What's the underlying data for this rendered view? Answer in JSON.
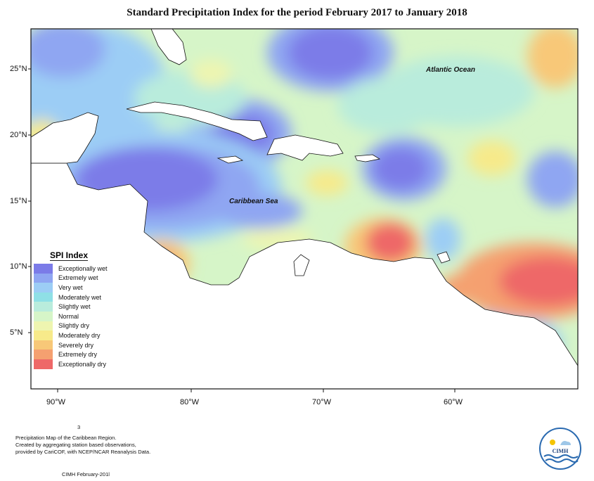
{
  "title": "Standard Precipitation Index for the period February 2017 to January 2018",
  "latitude_labels": [
    "25°N",
    "20°N",
    "15°N",
    "10°N",
    "5°N"
  ],
  "longitude_labels": [
    "90°W",
    "80°W",
    "70°W",
    "60°W"
  ],
  "ocean_labels": {
    "atlantic": "Atlantic Ocean",
    "caribbean": "Caribbean Sea"
  },
  "legend": {
    "title": "SPI Index",
    "items": [
      {
        "label": "Exceptionally wet",
        "color": "#7b7be8"
      },
      {
        "label": "Extremely wet",
        "color": "#8fa6f2"
      },
      {
        "label": "Very wet",
        "color": "#9ccdf5"
      },
      {
        "label": "Moderately wet",
        "color": "#8fe0e6"
      },
      {
        "label": "Slightly wet",
        "color": "#b9ecdc"
      },
      {
        "label": "Normal",
        "color": "#d6f5c8"
      },
      {
        "label": "Slightly dry",
        "color": "#eef5b0"
      },
      {
        "label": "Moderately dry",
        "color": "#f7ea8a"
      },
      {
        "label": "Severely dry",
        "color": "#f8c878"
      },
      {
        "label": "Extremely dry",
        "color": "#f5a070"
      },
      {
        "label": "Exceptionally dry",
        "color": "#ee6868"
      }
    ]
  },
  "page_number": "3",
  "footer_text": [
    "Precipitation Map of the Caribbean Region.",
    "Created by aggregating station based observations,",
    "provided by CariCOF, with NCEP/NCAR Reanalysis Data."
  ],
  "credit": "CIMH February-201l",
  "logo_text": "CIMH"
}
